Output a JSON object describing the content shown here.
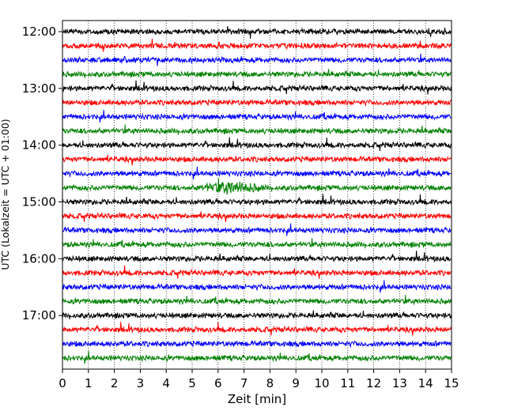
{
  "chart_data": {
    "type": "line",
    "plot_style": "helicorder",
    "xlabel": "Zeit  [min]",
    "ylabel": "UTC (Lokalzeit = UTC + 01:00)",
    "xlim": [
      0,
      15
    ],
    "x_ticks": [
      "0",
      "1",
      "2",
      "3",
      "4",
      "5",
      "6",
      "7",
      "8",
      "9",
      "10",
      "11",
      "12",
      "13",
      "14",
      "15"
    ],
    "y_tick_labels": [
      "12:00",
      "13:00",
      "14:00",
      "15:00",
      "16:00",
      "17:00"
    ],
    "grid": "vertical dotted lines at each minute",
    "minutes_per_line": 15,
    "trace_colors": [
      "#000000",
      "#ff0000",
      "#0000ff",
      "#008000"
    ],
    "traces": [
      {
        "start": "12:00",
        "color": "#000000"
      },
      {
        "start": "12:15",
        "color": "#ff0000"
      },
      {
        "start": "12:30",
        "color": "#0000ff"
      },
      {
        "start": "12:45",
        "color": "#008000"
      },
      {
        "start": "13:00",
        "color": "#000000"
      },
      {
        "start": "13:15",
        "color": "#ff0000"
      },
      {
        "start": "13:30",
        "color": "#0000ff"
      },
      {
        "start": "13:45",
        "color": "#008000"
      },
      {
        "start": "14:00",
        "color": "#000000"
      },
      {
        "start": "14:15",
        "color": "#ff0000"
      },
      {
        "start": "14:30",
        "color": "#0000ff"
      },
      {
        "start": "14:45",
        "color": "#008000",
        "event_minute": 6.5
      },
      {
        "start": "15:00",
        "color": "#000000"
      },
      {
        "start": "15:15",
        "color": "#ff0000"
      },
      {
        "start": "15:30",
        "color": "#0000ff"
      },
      {
        "start": "15:45",
        "color": "#008000"
      },
      {
        "start": "16:00",
        "color": "#000000"
      },
      {
        "start": "16:15",
        "color": "#ff0000"
      },
      {
        "start": "16:30",
        "color": "#0000ff"
      },
      {
        "start": "16:45",
        "color": "#008000"
      },
      {
        "start": "17:00",
        "color": "#000000"
      },
      {
        "start": "17:15",
        "color": "#ff0000"
      },
      {
        "start": "17:30",
        "color": "#0000ff"
      },
      {
        "start": "17:45",
        "color": "#008000"
      }
    ]
  }
}
